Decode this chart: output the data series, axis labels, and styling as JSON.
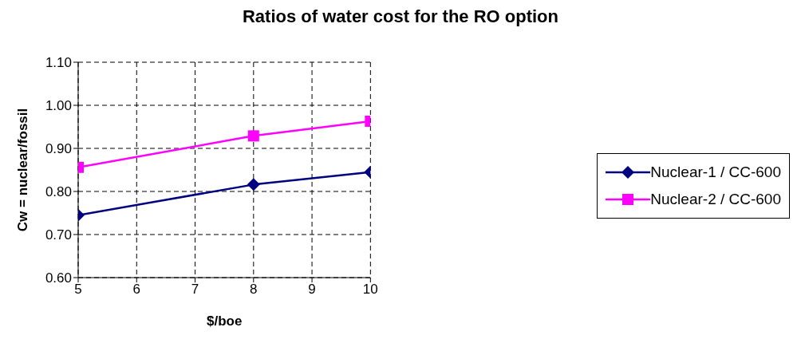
{
  "chart_data": {
    "type": "line",
    "title": "Ratios of water cost for the RO option",
    "xlabel": "$/boe",
    "ylabel": "Cw = nuclear/fossil",
    "xlim": [
      5,
      10
    ],
    "xticks": [
      5,
      6,
      7,
      8,
      9,
      10
    ],
    "ylim": [
      0.6,
      1.1
    ],
    "yticks": [
      {
        "value": 0.6,
        "label": "0.60"
      },
      {
        "value": 0.7,
        "label": "0.70"
      },
      {
        "value": 0.8,
        "label": "0.80"
      },
      {
        "value": 0.9,
        "label": "0.90"
      },
      {
        "value": 1.0,
        "label": "1.00"
      },
      {
        "value": 1.1,
        "label": "1.10"
      }
    ],
    "grid": true,
    "legend": "right",
    "line_style": "solid",
    "series": [
      {
        "name": "Nuclear-1 / CC-600",
        "color": "#000080",
        "marker": "diamond",
        "x": [
          5,
          8,
          10
        ],
        "values": [
          0.745,
          0.816,
          0.845
        ]
      },
      {
        "name": "Nuclear-2 / CC-600",
        "color": "#ff00ff",
        "marker": "square",
        "x": [
          5,
          8,
          10
        ],
        "values": [
          0.856,
          0.929,
          0.963
        ]
      }
    ]
  }
}
